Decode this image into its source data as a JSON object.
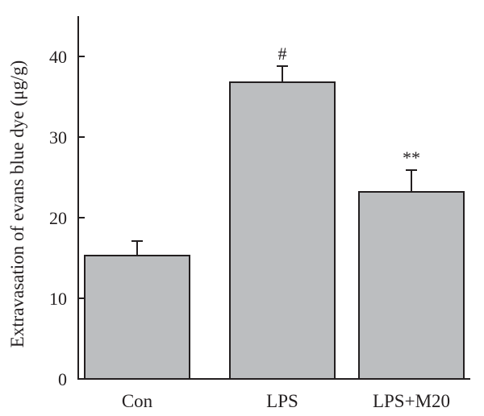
{
  "chart_data": {
    "type": "bar",
    "title": "",
    "xlabel": "",
    "ylabel": "Extravasation of evans blue dye (μg/g)",
    "categories": [
      "Con",
      "LPS",
      "LPS+M20"
    ],
    "values": [
      15.3,
      36.8,
      23.2
    ],
    "errors": [
      1.8,
      2.0,
      2.7
    ],
    "annotations": [
      "",
      "#",
      "**"
    ],
    "ylim": [
      0,
      45
    ],
    "yticks": [
      0,
      10,
      20,
      30,
      40
    ],
    "grid": false,
    "legend": "none",
    "colors": {
      "bar_fill": "#bcbec0",
      "bar_stroke": "#231f20",
      "axis": "#231f20",
      "text": "#231f20"
    }
  }
}
